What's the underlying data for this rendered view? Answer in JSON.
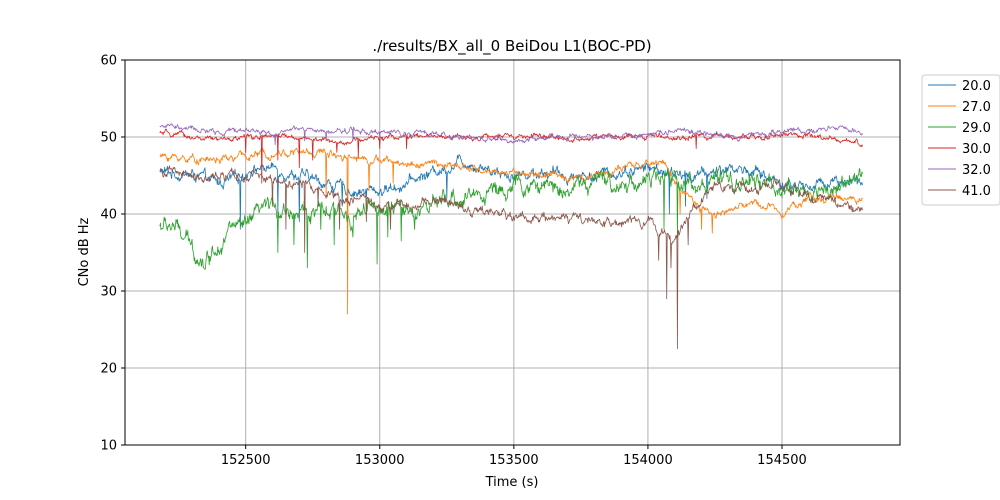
{
  "chart_data": {
    "type": "line",
    "title": "./results/BX_all_0 BeiDou L1(BOC-PD)",
    "xlabel": "Time (s)",
    "ylabel": "CNo dB Hz",
    "xlim": [
      152050,
      154940
    ],
    "ylim": [
      10,
      60
    ],
    "x_start": 152180,
    "x_end": 154800,
    "xticks": [
      152500,
      153000,
      153500,
      154000,
      154500
    ],
    "xtick_labels": [
      "152500",
      "153000",
      "153500",
      "154000",
      "154500"
    ],
    "yticks": [
      10,
      20,
      30,
      40,
      50,
      60
    ],
    "ytick_labels": [
      "10",
      "20",
      "30",
      "40",
      "50",
      "60"
    ],
    "grid": true,
    "legend_position": "upper-right-outside",
    "series": [
      {
        "name": "20.0",
        "color": "#1f77b4",
        "noise": 0.5,
        "points": [
          [
            152180,
            45.5
          ],
          [
            152300,
            45.0
          ],
          [
            152400,
            44.0
          ],
          [
            152470,
            44.5
          ],
          [
            152520,
            46.0
          ],
          [
            152600,
            46.0
          ],
          [
            152700,
            45.0
          ],
          [
            152800,
            44.0
          ],
          [
            152900,
            43.0
          ],
          [
            153000,
            43.0
          ],
          [
            153100,
            44.0
          ],
          [
            153200,
            45.5
          ],
          [
            153250,
            46.0
          ],
          [
            153300,
            47.0
          ],
          [
            153400,
            46.0
          ],
          [
            153500,
            45.0
          ],
          [
            153600,
            45.5
          ],
          [
            153700,
            45.0
          ],
          [
            153800,
            45.0
          ],
          [
            153900,
            45.5
          ],
          [
            154000,
            46.0
          ],
          [
            154060,
            45.5
          ],
          [
            154100,
            45.0
          ],
          [
            154200,
            45.0
          ],
          [
            154250,
            45.5
          ],
          [
            154300,
            46.0
          ],
          [
            154400,
            45.5
          ],
          [
            154500,
            44.0
          ],
          [
            154600,
            43.5
          ],
          [
            154700,
            44.5
          ],
          [
            154800,
            44.0
          ]
        ],
        "spikes": [
          [
            152480,
            38
          ],
          [
            152620,
            40
          ],
          [
            152700,
            39
          ],
          [
            152860,
            41
          ],
          [
            152950,
            42
          ],
          [
            153250,
            42
          ],
          [
            154080,
            40
          ],
          [
            154140,
            41
          ],
          [
            154220,
            42
          ]
        ]
      },
      {
        "name": "27.0",
        "color": "#ff7f0e",
        "noise": 0.35,
        "points": [
          [
            152180,
            47.5
          ],
          [
            152300,
            47.2
          ],
          [
            152400,
            47.0
          ],
          [
            152500,
            47.5
          ],
          [
            152600,
            48.0
          ],
          [
            152700,
            48.0
          ],
          [
            152800,
            48.0
          ],
          [
            152900,
            47.5
          ],
          [
            153000,
            47.0
          ],
          [
            153100,
            46.5
          ],
          [
            153200,
            46.5
          ],
          [
            153300,
            46.0
          ],
          [
            153400,
            45.5
          ],
          [
            153500,
            45.5
          ],
          [
            153600,
            45.0
          ],
          [
            153700,
            44.8
          ],
          [
            153800,
            45.0
          ],
          [
            153900,
            45.8
          ],
          [
            154000,
            46.5
          ],
          [
            154060,
            47.0
          ],
          [
            154100,
            44.0
          ],
          [
            154150,
            42.0
          ],
          [
            154200,
            40.5
          ],
          [
            154250,
            40.0
          ],
          [
            154300,
            40.5
          ],
          [
            154400,
            41.5
          ],
          [
            154500,
            40.5
          ],
          [
            154600,
            42.0
          ],
          [
            154700,
            42.0
          ],
          [
            154800,
            42.0
          ]
        ],
        "spikes": [
          [
            152880,
            27
          ],
          [
            152800,
            42
          ],
          [
            152960,
            43
          ],
          [
            153050,
            44
          ],
          [
            154120,
            40
          ],
          [
            154200,
            38
          ],
          [
            154240,
            37.5
          ]
        ]
      },
      {
        "name": "29.0",
        "color": "#2ca02c",
        "noise": 0.8,
        "points": [
          [
            152180,
            38.5
          ],
          [
            152230,
            38.5
          ],
          [
            152300,
            35.5
          ],
          [
            152350,
            33.8
          ],
          [
            152400,
            36.5
          ],
          [
            152450,
            38.5
          ],
          [
            152500,
            38.0
          ],
          [
            152550,
            40.0
          ],
          [
            152600,
            41.0
          ],
          [
            152700,
            40.5
          ],
          [
            152800,
            40.0
          ],
          [
            152900,
            40.0
          ],
          [
            153000,
            40.5
          ],
          [
            153100,
            40.5
          ],
          [
            153200,
            41.0
          ],
          [
            153300,
            42.0
          ],
          [
            153400,
            43.0
          ],
          [
            153500,
            43.5
          ],
          [
            153600,
            43.5
          ],
          [
            153700,
            43.5
          ],
          [
            153800,
            44.0
          ],
          [
            153900,
            44.0
          ],
          [
            154000,
            44.5
          ],
          [
            154100,
            44.5
          ],
          [
            154200,
            44.0
          ],
          [
            154300,
            44.0
          ],
          [
            154400,
            44.0
          ],
          [
            154500,
            43.5
          ],
          [
            154600,
            42.5
          ],
          [
            154700,
            43.5
          ],
          [
            154800,
            44.5
          ]
        ],
        "spikes": [
          [
            152620,
            35
          ],
          [
            152680,
            36
          ],
          [
            152730,
            33
          ],
          [
            152780,
            38
          ],
          [
            152830,
            36
          ],
          [
            152900,
            37
          ],
          [
            152990,
            33.5
          ],
          [
            153030,
            37
          ],
          [
            153080,
            36.5
          ],
          [
            153130,
            38
          ],
          [
            154060,
            38
          ],
          [
            154110,
            37
          ]
        ]
      },
      {
        "name": "30.0",
        "color": "#d62728",
        "noise": 0.25,
        "points": [
          [
            152180,
            50.5
          ],
          [
            152300,
            50.0
          ],
          [
            152400,
            49.5
          ],
          [
            152500,
            50.0
          ],
          [
            152600,
            50.0
          ],
          [
            152700,
            50.0
          ],
          [
            152800,
            49.5
          ],
          [
            152900,
            49.5
          ],
          [
            153000,
            50.0
          ],
          [
            153100,
            50.0
          ],
          [
            153200,
            50.0
          ],
          [
            153300,
            50.0
          ],
          [
            153400,
            50.0
          ],
          [
            153500,
            50.0
          ],
          [
            153600,
            50.0
          ],
          [
            153700,
            49.8
          ],
          [
            153800,
            50.0
          ],
          [
            153900,
            50.0
          ],
          [
            154000,
            50.0
          ],
          [
            154100,
            50.0
          ],
          [
            154200,
            50.0
          ],
          [
            154300,
            50.0
          ],
          [
            154400,
            50.0
          ],
          [
            154500,
            50.5
          ],
          [
            154600,
            50.0
          ],
          [
            154700,
            49.5
          ],
          [
            154800,
            49.2
          ]
        ],
        "spikes": [
          [
            152500,
            48
          ],
          [
            152560,
            44
          ],
          [
            152620,
            47
          ],
          [
            152700,
            46
          ],
          [
            152750,
            47
          ],
          [
            152840,
            48
          ],
          [
            152920,
            47.5
          ],
          [
            153000,
            48.5
          ],
          [
            153100,
            48.5
          ],
          [
            154180,
            48.5
          ]
        ]
      },
      {
        "name": "32.0",
        "color": "#9467bd",
        "noise": 0.25,
        "points": [
          [
            152180,
            51.5
          ],
          [
            152300,
            51.0
          ],
          [
            152400,
            50.5
          ],
          [
            152500,
            51.0
          ],
          [
            152600,
            50.5
          ],
          [
            152700,
            51.0
          ],
          [
            152800,
            50.5
          ],
          [
            152900,
            51.0
          ],
          [
            153000,
            50.5
          ],
          [
            153100,
            50.5
          ],
          [
            153200,
            50.5
          ],
          [
            153300,
            50.0
          ],
          [
            153400,
            49.8
          ],
          [
            153500,
            49.5
          ],
          [
            153600,
            49.8
          ],
          [
            153700,
            50.0
          ],
          [
            153800,
            50.0
          ],
          [
            153900,
            50.0
          ],
          [
            154000,
            50.5
          ],
          [
            154100,
            51.0
          ],
          [
            154200,
            50.5
          ],
          [
            154300,
            50.0
          ],
          [
            154400,
            50.3
          ],
          [
            154500,
            50.7
          ],
          [
            154600,
            51.0
          ],
          [
            154700,
            51.0
          ],
          [
            154800,
            50.8
          ]
        ],
        "spikes": [
          [
            152610,
            49
          ],
          [
            152720,
            49.5
          ],
          [
            152800,
            49.5
          ],
          [
            152900,
            49.5
          ],
          [
            153000,
            49.8
          ]
        ]
      },
      {
        "name": "41.0",
        "color": "#8c564b",
        "noise": 0.45,
        "points": [
          [
            152180,
            45.5
          ],
          [
            152300,
            45.0
          ],
          [
            152400,
            44.5
          ],
          [
            152500,
            45.0
          ],
          [
            152600,
            44.5
          ],
          [
            152700,
            44.0
          ],
          [
            152800,
            43.0
          ],
          [
            152900,
            42.0
          ],
          [
            153000,
            41.0
          ],
          [
            153100,
            41.0
          ],
          [
            153200,
            42.0
          ],
          [
            153300,
            41.0
          ],
          [
            153400,
            40.5
          ],
          [
            153500,
            39.5
          ],
          [
            153600,
            40.0
          ],
          [
            153700,
            39.5
          ],
          [
            153800,
            38.5
          ],
          [
            153900,
            38.5
          ],
          [
            154000,
            39.0
          ],
          [
            154050,
            37.5
          ],
          [
            154100,
            37.0
          ],
          [
            154150,
            40.0
          ],
          [
            154200,
            42.0
          ],
          [
            154300,
            43.5
          ],
          [
            154400,
            43.5
          ],
          [
            154500,
            43.5
          ],
          [
            154600,
            42.5
          ],
          [
            154700,
            41.5
          ],
          [
            154800,
            40.5
          ]
        ],
        "spikes": [
          [
            152600,
            41
          ],
          [
            152650,
            38
          ],
          [
            152720,
            35
          ],
          [
            152770,
            41
          ],
          [
            152850,
            38
          ],
          [
            152950,
            39
          ],
          [
            153040,
            38
          ],
          [
            154040,
            34
          ],
          [
            154070,
            29
          ],
          [
            154085,
            33
          ],
          [
            154110,
            22.5
          ],
          [
            154150,
            36
          ]
        ]
      }
    ]
  }
}
